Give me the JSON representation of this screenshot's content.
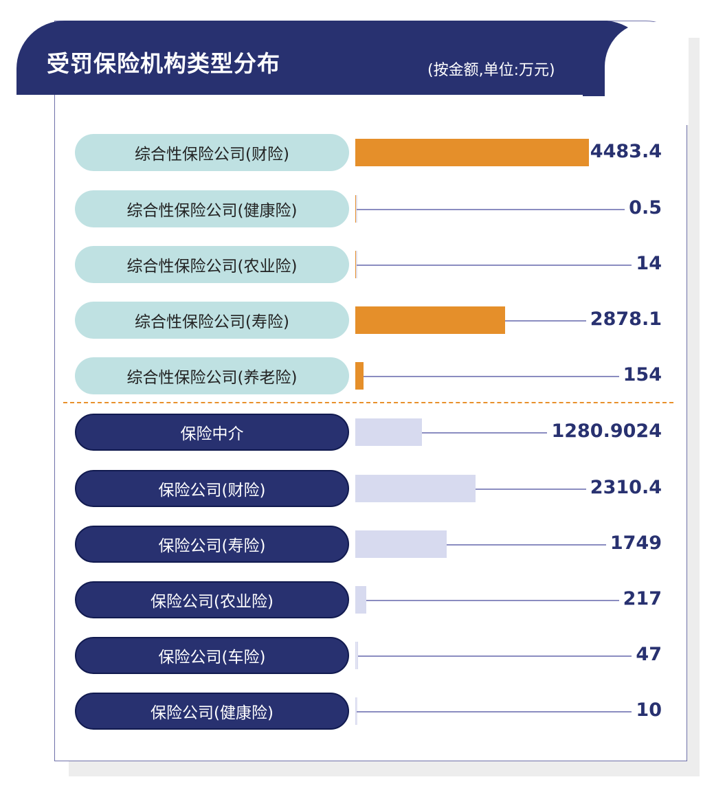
{
  "chart_data": {
    "type": "bar",
    "orientation": "horizontal",
    "title": "受罚保险机构类型分布",
    "subtitle": "(按金额,单位:万元)",
    "colors": {
      "group1_bar": "#e58f2a",
      "group2_bar": "#d7daef",
      "group1_label_bg": "#bfe1e2",
      "group2_label_bg": "#283170",
      "header": "#283170"
    },
    "categories": [
      "综合性保险公司(财险)",
      "综合性保险公司(健康险)",
      "综合性保险公司(农业险)",
      "综合性保险公司(寿险)",
      "综合性保险公司(养老险)",
      "保险中介",
      "保险公司(财险)",
      "保险公司(寿险)",
      "保险公司(农业险)",
      "保险公司(车险)",
      "保险公司(健康险)"
    ],
    "values": [
      4483.4,
      0.5,
      14,
      2878.1,
      154,
      1280.9024,
      2310.4,
      1749,
      217,
      47,
      10
    ],
    "value_labels": [
      "4483.4",
      "0.5",
      "14",
      "2878.1",
      "154",
      "1280.9024",
      "2310.4",
      "1749",
      "217",
      "47",
      "10"
    ],
    "groups": [
      1,
      1,
      1,
      1,
      1,
      2,
      2,
      2,
      2,
      2,
      2
    ]
  }
}
